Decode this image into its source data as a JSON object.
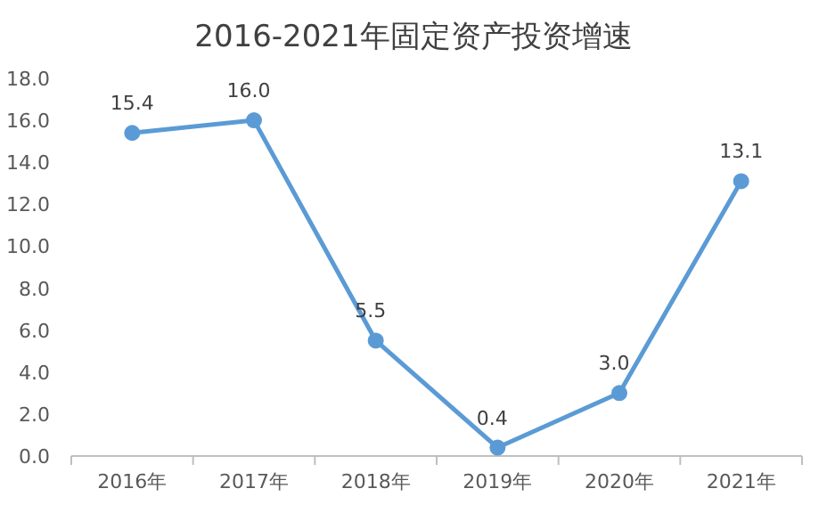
{
  "chart_data": {
    "type": "line",
    "title": "2016-2021年固定资产投资增速",
    "categories": [
      "2016年",
      "2017年",
      "2018年",
      "2019年",
      "2020年",
      "2021年"
    ],
    "series": [
      {
        "color": "#5b9bd5",
        "values": [
          15.4,
          16.0,
          5.5,
          0.4,
          3.0,
          13.1
        ],
        "value_labels": [
          "15.4",
          "16.0",
          "5.5",
          "0.4",
          "3.0",
          "13.1"
        ]
      }
    ],
    "ylim": [
      0,
      18
    ],
    "yticks": [
      {
        "value": 0,
        "label": "0.0"
      },
      {
        "value": 2,
        "label": "2.0"
      },
      {
        "value": 4,
        "label": "4.0"
      },
      {
        "value": 6,
        "label": "6.0"
      },
      {
        "value": 8,
        "label": "8.0"
      },
      {
        "value": 10,
        "label": "10.0"
      },
      {
        "value": 12,
        "label": "12.0"
      },
      {
        "value": 14,
        "label": "14.0"
      },
      {
        "value": 16,
        "label": "16.0"
      },
      {
        "value": 18,
        "label": "18.0"
      }
    ],
    "marker": "circle",
    "line_style": "solid"
  }
}
